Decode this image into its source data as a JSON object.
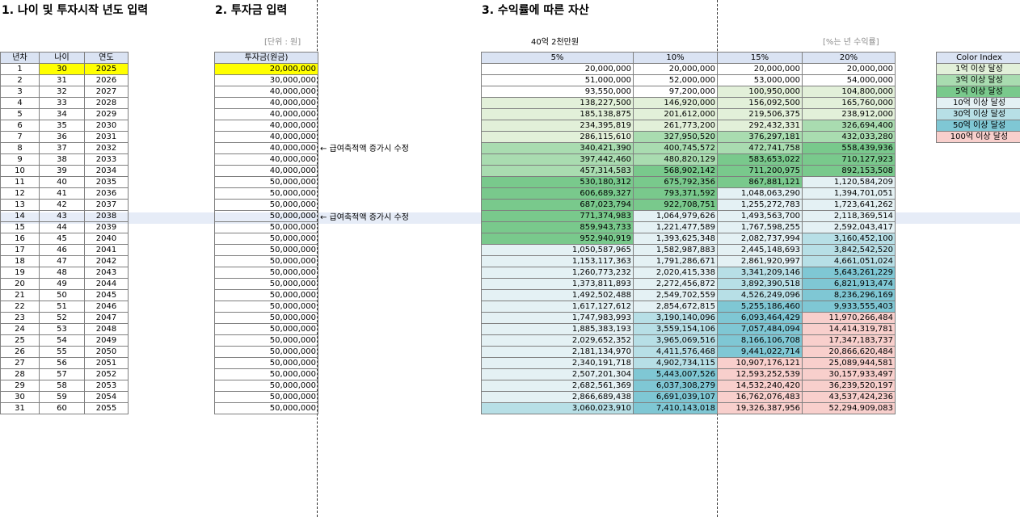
{
  "titles": {
    "section1": "1. 나이 및 투자시작 년도 입력",
    "section2": "2. 투자금 입력",
    "section3": "3. 수익률에 따른 자산"
  },
  "notes": {
    "unit": "[단위 : 원]",
    "target": "40억 2천만원",
    "rate_note": "[%는 년 수익률]"
  },
  "age_table": {
    "headers": [
      "년차",
      "나이",
      "연도"
    ],
    "rows": [
      [
        "1",
        "30",
        "2025"
      ],
      [
        "2",
        "31",
        "2026"
      ],
      [
        "3",
        "32",
        "2027"
      ],
      [
        "4",
        "33",
        "2028"
      ],
      [
        "5",
        "34",
        "2029"
      ],
      [
        "6",
        "35",
        "2030"
      ],
      [
        "7",
        "36",
        "2031"
      ],
      [
        "8",
        "37",
        "2032"
      ],
      [
        "9",
        "38",
        "2033"
      ],
      [
        "10",
        "39",
        "2034"
      ],
      [
        "11",
        "40",
        "2035"
      ],
      [
        "12",
        "41",
        "2036"
      ],
      [
        "13",
        "42",
        "2037"
      ],
      [
        "14",
        "43",
        "2038"
      ],
      [
        "15",
        "44",
        "2039"
      ],
      [
        "16",
        "45",
        "2040"
      ],
      [
        "17",
        "46",
        "2041"
      ],
      [
        "18",
        "47",
        "2042"
      ],
      [
        "19",
        "48",
        "2043"
      ],
      [
        "20",
        "49",
        "2044"
      ],
      [
        "21",
        "50",
        "2045"
      ],
      [
        "22",
        "51",
        "2046"
      ],
      [
        "23",
        "52",
        "2047"
      ],
      [
        "24",
        "53",
        "2048"
      ],
      [
        "25",
        "54",
        "2049"
      ],
      [
        "26",
        "55",
        "2050"
      ],
      [
        "27",
        "56",
        "2051"
      ],
      [
        "28",
        "57",
        "2052"
      ],
      [
        "29",
        "58",
        "2053"
      ],
      [
        "30",
        "59",
        "2054"
      ],
      [
        "31",
        "60",
        "2055"
      ]
    ]
  },
  "investment_table": {
    "header": "투자금(원금)",
    "values": [
      "20,000,000",
      "30,000,000",
      "40,000,000",
      "40,000,000",
      "40,000,000",
      "40,000,000",
      "40,000,000",
      "40,000,000",
      "40,000,000",
      "40,000,000",
      "50,000,000",
      "50,000,000",
      "50,000,000",
      "50,000,000",
      "50,000,000",
      "50,000,000",
      "50,000,000",
      "50,000,000",
      "50,000,000",
      "50,000,000",
      "50,000,000",
      "50,000,000",
      "50,000,000",
      "50,000,000",
      "50,000,000",
      "50,000,000",
      "50,000,000",
      "50,000,000",
      "50,000,000",
      "50,000,000",
      "50,000,000"
    ]
  },
  "annotations": {
    "row6": "← 급여축적액 증가시 수정",
    "row11": "← 급여축적액 증가시 수정"
  },
  "asset_table": {
    "headers": [
      "5%",
      "10%",
      "15%",
      "20%"
    ],
    "rows": [
      [
        "20,000,000",
        "20,000,000",
        "20,000,000",
        "20,000,000"
      ],
      [
        "51,000,000",
        "52,000,000",
        "53,000,000",
        "54,000,000"
      ],
      [
        "93,550,000",
        "97,200,000",
        "100,950,000",
        "104,800,000"
      ],
      [
        "138,227,500",
        "146,920,000",
        "156,092,500",
        "165,760,000"
      ],
      [
        "185,138,875",
        "201,612,000",
        "219,506,375",
        "238,912,000"
      ],
      [
        "234,395,819",
        "261,773,200",
        "292,432,331",
        "326,694,400"
      ],
      [
        "286,115,610",
        "327,950,520",
        "376,297,181",
        "432,033,280"
      ],
      [
        "340,421,390",
        "400,745,572",
        "472,741,758",
        "558,439,936"
      ],
      [
        "397,442,460",
        "480,820,129",
        "583,653,022",
        "710,127,923"
      ],
      [
        "457,314,583",
        "568,902,142",
        "711,200,975",
        "892,153,508"
      ],
      [
        "530,180,312",
        "675,792,356",
        "867,881,121",
        "1,120,584,209"
      ],
      [
        "606,689,327",
        "793,371,592",
        "1,048,063,290",
        "1,394,701,051"
      ],
      [
        "687,023,794",
        "922,708,751",
        "1,255,272,783",
        "1,723,641,262"
      ],
      [
        "771,374,983",
        "1,064,979,626",
        "1,493,563,700",
        "2,118,369,514"
      ],
      [
        "859,943,733",
        "1,221,477,589",
        "1,767,598,255",
        "2,592,043,417"
      ],
      [
        "952,940,919",
        "1,393,625,348",
        "2,082,737,994",
        "3,160,452,100"
      ],
      [
        "1,050,587,965",
        "1,582,987,883",
        "2,445,148,693",
        "3,842,542,520"
      ],
      [
        "1,153,117,363",
        "1,791,286,671",
        "2,861,920,997",
        "4,661,051,024"
      ],
      [
        "1,260,773,232",
        "2,020,415,338",
        "3,341,209,146",
        "5,643,261,229"
      ],
      [
        "1,373,811,893",
        "2,272,456,872",
        "3,892,390,518",
        "6,821,913,474"
      ],
      [
        "1,492,502,488",
        "2,549,702,559",
        "4,526,249,096",
        "8,236,296,169"
      ],
      [
        "1,617,127,612",
        "2,854,672,815",
        "5,255,186,460",
        "9,933,555,403"
      ],
      [
        "1,747,983,993",
        "3,190,140,096",
        "6,093,464,429",
        "11,970,266,484"
      ],
      [
        "1,885,383,193",
        "3,559,154,106",
        "7,057,484,094",
        "14,414,319,781"
      ],
      [
        "2,029,652,352",
        "3,965,069,516",
        "8,166,106,708",
        "17,347,183,737"
      ],
      [
        "2,181,134,970",
        "4,411,576,468",
        "9,441,022,714",
        "20,866,620,484"
      ],
      [
        "2,340,191,718",
        "4,902,734,115",
        "10,907,176,121",
        "25,089,944,581"
      ],
      [
        "2,507,201,304",
        "5,443,007,526",
        "12,593,252,539",
        "30,157,933,497"
      ],
      [
        "2,682,561,369",
        "6,037,308,279",
        "14,532,240,420",
        "36,239,520,197"
      ],
      [
        "2,866,689,438",
        "6,691,039,107",
        "16,762,076,483",
        "43,537,424,236"
      ],
      [
        "3,060,023,910",
        "7,410,143,018",
        "19,326,387,956",
        "52,294,909,083"
      ]
    ]
  },
  "color_index": {
    "header": "Color Index",
    "levels": [
      {
        "label": "1억 이상 달성",
        "color": "#e2f0d9"
      },
      {
        "label": "3억 이상 달성",
        "color": "#a9dcb0"
      },
      {
        "label": "5억 이상 달성",
        "color": "#79c98c"
      },
      {
        "label": "10억 이상 달성",
        "color": "#e4f1f4"
      },
      {
        "label": "30억 이상 달성",
        "color": "#b7dfe6"
      },
      {
        "label": "50억 이상 달성",
        "color": "#7fc7d4"
      },
      {
        "label": "100억 이상 달성",
        "color": "#f8cfcc"
      }
    ]
  }
}
